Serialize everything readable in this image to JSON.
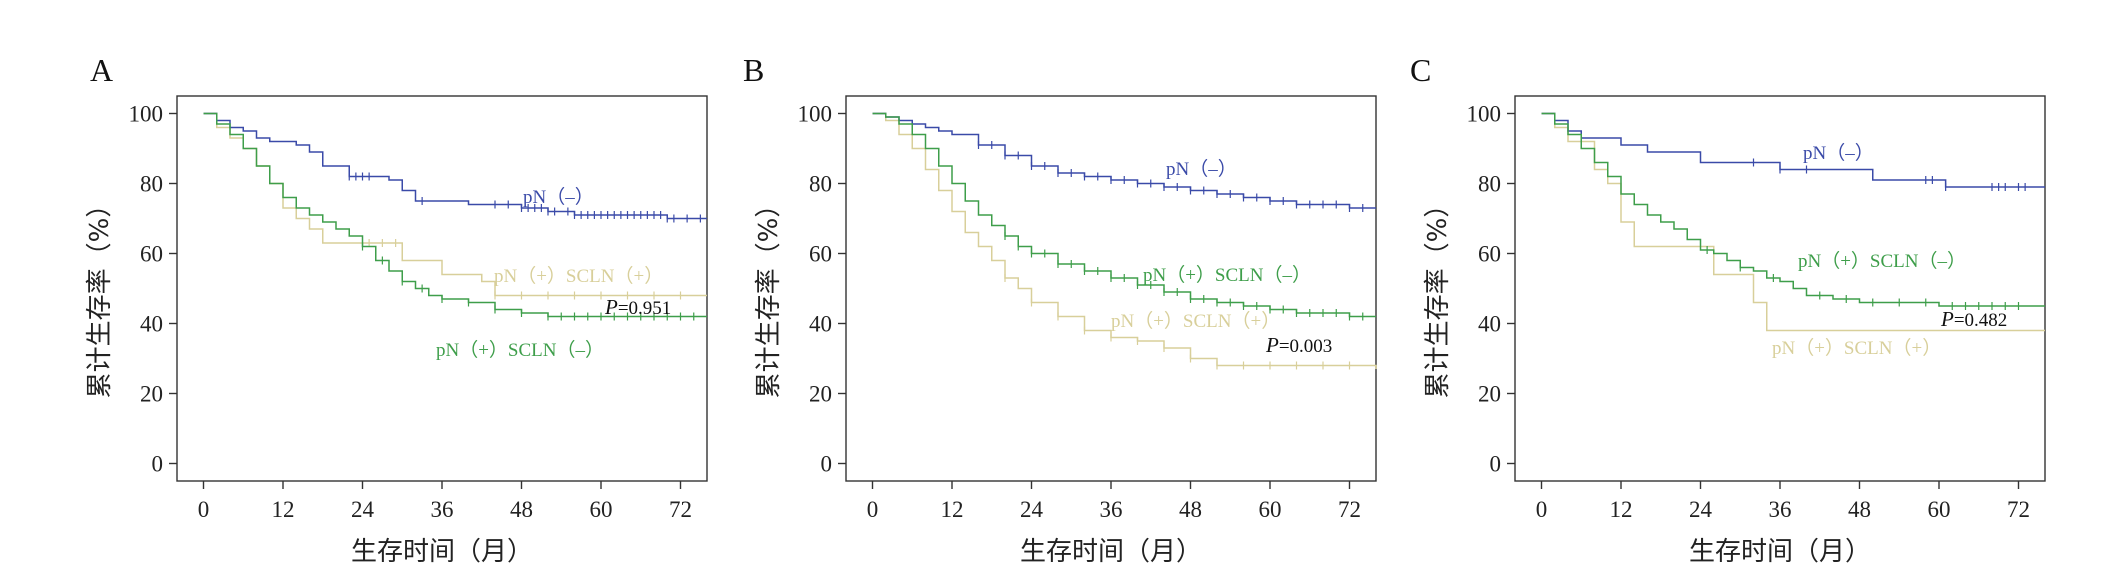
{
  "colors": {
    "pN_neg": "#3a4aa8",
    "pN_pos_sclnneg": "#3e9e4a",
    "pN_pos_sclnpos": "#d8cf9a"
  },
  "chart_data": [
    {
      "type": "line",
      "panel": "A",
      "xlabel": "生存时间（月）",
      "ylabel": "累计生存率（%）",
      "xticks": [
        0,
        12,
        24,
        36,
        48,
        60,
        72
      ],
      "yticks": [
        0,
        20,
        40,
        60,
        80,
        100
      ],
      "xlim": [
        -4,
        76
      ],
      "ylim": [
        -5,
        105
      ],
      "p_value_prefix": "P",
      "p_value_eq": "=",
      "p_value": "0.951",
      "series": [
        {
          "name": "pN（–）",
          "color_key": "pN_neg",
          "x": [
            0,
            2,
            4,
            6,
            8,
            10,
            12,
            14,
            16,
            18,
            20,
            22,
            24,
            28,
            30,
            32,
            36,
            40,
            44,
            48,
            52,
            56,
            60,
            66,
            70,
            72,
            76
          ],
          "y": [
            100,
            98,
            96,
            95,
            93,
            92,
            92,
            91,
            89,
            85,
            85,
            82,
            82,
            81,
            78,
            75,
            75,
            74,
            74,
            73,
            72,
            71,
            71,
            71,
            70,
            70,
            70
          ],
          "censor": [
            22,
            23,
            24,
            25,
            33,
            44,
            46,
            48,
            49,
            50,
            51,
            52,
            53,
            55,
            56,
            57,
            58,
            59,
            60,
            61,
            62,
            63,
            64,
            65,
            66,
            67,
            68,
            69,
            70,
            71,
            73,
            75
          ]
        },
        {
          "name": "pN（+）SCLN（+）",
          "color_key": "pN_pos_sclnpos",
          "x": [
            0,
            2,
            4,
            6,
            8,
            10,
            12,
            14,
            16,
            18,
            24,
            30,
            36,
            40,
            42,
            44,
            48,
            60,
            76
          ],
          "y": [
            100,
            96,
            93,
            90,
            85,
            80,
            73,
            70,
            67,
            63,
            63,
            58,
            54,
            54,
            52,
            48,
            48,
            48,
            48
          ],
          "censor": [
            25,
            27,
            29,
            44,
            48,
            52,
            56,
            60,
            64,
            68,
            72
          ]
        },
        {
          "name": "pN（+）SCLN（–）",
          "color_key": "pN_pos_sclnneg",
          "x": [
            0,
            2,
            4,
            6,
            8,
            10,
            12,
            14,
            16,
            18,
            20,
            22,
            24,
            26,
            28,
            30,
            32,
            34,
            36,
            40,
            44,
            48,
            52,
            56,
            60,
            64,
            68,
            72,
            76
          ],
          "y": [
            100,
            97,
            94,
            90,
            85,
            80,
            76,
            73,
            71,
            69,
            67,
            65,
            62,
            58,
            55,
            52,
            50,
            48,
            47,
            46,
            44,
            43,
            42,
            42,
            42,
            42,
            42,
            42,
            42
          ],
          "censor": [
            24,
            27,
            30,
            33,
            36,
            40,
            44,
            48,
            52,
            54,
            56,
            58,
            60,
            62,
            64,
            66,
            68,
            70,
            72,
            74
          ]
        }
      ]
    },
    {
      "type": "line",
      "panel": "B",
      "xlabel": "生存时间（月）",
      "ylabel": "累计生存率（%）",
      "xticks": [
        0,
        12,
        24,
        36,
        48,
        60,
        72
      ],
      "yticks": [
        0,
        20,
        40,
        60,
        80,
        100
      ],
      "xlim": [
        -4,
        76
      ],
      "ylim": [
        -5,
        105
      ],
      "p_value_prefix": "P",
      "p_value_eq": "=",
      "p_value": "0.003",
      "series": [
        {
          "name": "pN（–）",
          "color_key": "pN_neg",
          "x": [
            0,
            2,
            4,
            6,
            8,
            10,
            12,
            16,
            20,
            24,
            28,
            32,
            36,
            40,
            44,
            48,
            52,
            56,
            60,
            64,
            68,
            72,
            76
          ],
          "y": [
            100,
            99,
            98,
            97,
            96,
            95,
            94,
            91,
            88,
            85,
            83,
            82,
            81,
            80,
            79,
            78,
            77,
            76,
            75,
            74,
            74,
            73,
            73
          ],
          "censor": [
            16,
            18,
            20,
            22,
            24,
            26,
            28,
            30,
            32,
            34,
            36,
            38,
            40,
            42,
            44,
            46,
            48,
            50,
            52,
            54,
            56,
            58,
            60,
            62,
            64,
            66,
            68,
            70,
            72,
            74
          ]
        },
        {
          "name": "pN（+）SCLN（–）",
          "color_key": "pN_pos_sclnneg",
          "x": [
            0,
            2,
            4,
            6,
            8,
            10,
            12,
            14,
            16,
            18,
            20,
            22,
            24,
            28,
            32,
            36,
            40,
            44,
            48,
            52,
            56,
            60,
            64,
            68,
            72,
            76
          ],
          "y": [
            100,
            99,
            97,
            94,
            90,
            85,
            80,
            75,
            71,
            68,
            65,
            62,
            60,
            57,
            55,
            53,
            51,
            49,
            47,
            46,
            45,
            44,
            43,
            43,
            42,
            42
          ],
          "censor": [
            20,
            22,
            24,
            26,
            28,
            30,
            32,
            34,
            36,
            38,
            40,
            42,
            44,
            46,
            48,
            50,
            52,
            54,
            56,
            58,
            60,
            62,
            64,
            66,
            68,
            70,
            72,
            74
          ]
        },
        {
          "name": "pN（+）SCLN（+）",
          "color_key": "pN_pos_sclnpos",
          "x": [
            0,
            2,
            4,
            6,
            8,
            10,
            12,
            14,
            16,
            18,
            20,
            22,
            24,
            28,
            32,
            36,
            40,
            44,
            48,
            52,
            56,
            60,
            64,
            68,
            72,
            76
          ],
          "y": [
            100,
            98,
            94,
            90,
            84,
            78,
            72,
            66,
            62,
            58,
            53,
            50,
            46,
            42,
            38,
            36,
            35,
            33,
            30,
            28,
            28,
            28,
            28,
            28,
            28,
            27
          ],
          "censor": [
            20,
            24,
            28,
            32,
            36,
            40,
            44,
            48,
            52,
            56,
            60,
            64,
            68,
            72
          ]
        }
      ]
    },
    {
      "type": "line",
      "panel": "C",
      "xlabel": "生存时间（月）",
      "ylabel": "累计生存率（%）",
      "xticks": [
        0,
        12,
        24,
        36,
        48,
        60,
        72
      ],
      "yticks": [
        0,
        20,
        40,
        60,
        80,
        100
      ],
      "xlim": [
        -4,
        76
      ],
      "ylim": [
        -5,
        105
      ],
      "p_value_prefix": "P",
      "p_value_eq": "=",
      "p_value": "0.482",
      "series": [
        {
          "name": "pN（–）",
          "color_key": "pN_neg",
          "x": [
            0,
            2,
            4,
            6,
            8,
            10,
            12,
            16,
            20,
            24,
            30,
            36,
            44,
            48,
            50,
            60,
            61,
            76
          ],
          "y": [
            100,
            98,
            95,
            93,
            93,
            93,
            91,
            89,
            89,
            86,
            86,
            84,
            84,
            84,
            81,
            81,
            79,
            79
          ],
          "censor": [
            32,
            36,
            40,
            58,
            59,
            61,
            68,
            69,
            70,
            72,
            73
          ]
        },
        {
          "name": "pN（+）SCLN（–）",
          "color_key": "pN_pos_sclnneg",
          "x": [
            0,
            2,
            4,
            6,
            8,
            10,
            12,
            14,
            16,
            18,
            20,
            22,
            24,
            26,
            28,
            30,
            32,
            34,
            36,
            38,
            40,
            44,
            48,
            52,
            56,
            60,
            64,
            68,
            72,
            76
          ],
          "y": [
            100,
            97,
            94,
            90,
            86,
            82,
            77,
            74,
            71,
            69,
            67,
            64,
            61,
            60,
            58,
            56,
            55,
            53,
            52,
            50,
            48,
            47,
            46,
            46,
            46,
            45,
            45,
            45,
            45,
            45
          ],
          "censor": [
            25,
            30,
            35,
            42,
            46,
            50,
            54,
            58,
            62,
            64,
            66,
            68,
            70,
            72
          ]
        },
        {
          "name": "pN（+）SCLN（+）",
          "color_key": "pN_pos_sclnpos",
          "x": [
            0,
            2,
            4,
            6,
            8,
            10,
            12,
            14,
            24,
            26,
            30,
            32,
            34,
            36,
            44,
            50,
            60,
            76
          ],
          "y": [
            100,
            96,
            92,
            92,
            84,
            80,
            69,
            62,
            62,
            54,
            54,
            46,
            38,
            38,
            38,
            38,
            38,
            38
          ],
          "censor": []
        }
      ]
    }
  ],
  "labels": {
    "a": {
      "letter": "A",
      "pN_neg": "pN（–）",
      "sclnpos": "pN（+）SCLN（+）",
      "sclnneg": "pN（+）SCLN（–）"
    },
    "b": {
      "letter": "B",
      "pN_neg": "pN（–）",
      "sclnneg": "pN（+）SCLN（–）",
      "sclnpos": "pN（+）SCLN（+）"
    },
    "c": {
      "letter": "C",
      "pN_neg": "pN（–）",
      "sclnneg": "pN（+）SCLN（–）",
      "sclnpos": "pN（+）SCLN（+）"
    }
  }
}
